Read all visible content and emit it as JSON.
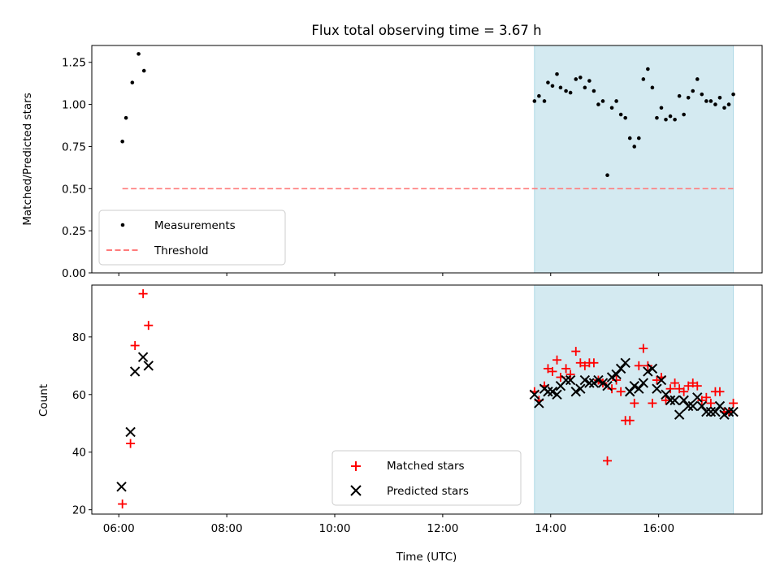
{
  "chart_data": [
    {
      "type": "scatter",
      "title": "Flux total observing time = 3.67 h",
      "xlabel": "",
      "ylabel": "Matched/Predicted stars",
      "ylim": [
        0,
        1.35
      ],
      "yticks": [
        "0.00",
        "0.25",
        "0.50",
        "0.75",
        "1.00",
        "1.25"
      ],
      "ytick_values": [
        0,
        0.25,
        0.5,
        0.75,
        1.0,
        1.25
      ],
      "shaded_span": {
        "from": "13:42",
        "to": "17:23",
        "color": "#d4eaf1"
      },
      "legend_location": "lower-left",
      "series": [
        {
          "name": "Measurements",
          "color": "#000000",
          "marker": "dot",
          "x": [
            "06:04",
            "06:08",
            "06:15",
            "06:22",
            "06:28",
            "13:42",
            "13:47",
            "13:53",
            "13:57",
            "14:02",
            "14:07",
            "14:11",
            "14:17",
            "14:22",
            "14:28",
            "14:33",
            "14:38",
            "14:43",
            "14:48",
            "14:53",
            "14:58",
            "15:03",
            "15:08",
            "15:13",
            "15:18",
            "15:23",
            "15:28",
            "15:33",
            "15:38",
            "15:43",
            "15:48",
            "15:53",
            "15:58",
            "16:03",
            "16:08",
            "16:13",
            "16:18",
            "16:23",
            "16:28",
            "16:33",
            "16:38",
            "16:43",
            "16:48",
            "16:53",
            "16:58",
            "17:03",
            "17:08",
            "17:13",
            "17:18",
            "17:23"
          ],
          "y": [
            0.78,
            0.92,
            1.13,
            1.3,
            1.2,
            1.02,
            1.05,
            1.02,
            1.13,
            1.11,
            1.18,
            1.1,
            1.08,
            1.07,
            1.15,
            1.16,
            1.1,
            1.14,
            1.08,
            1.0,
            1.02,
            0.58,
            0.98,
            1.02,
            0.94,
            0.92,
            0.8,
            0.75,
            0.8,
            1.15,
            1.21,
            1.1,
            0.92,
            0.98,
            0.91,
            0.93,
            0.91,
            1.05,
            0.94,
            1.04,
            1.08,
            1.15,
            1.06,
            1.02,
            1.02,
            1.0,
            1.04,
            0.98,
            1.0,
            1.06
          ]
        },
        {
          "name": "Threshold",
          "color": "#ff7b7b",
          "style": "dashed",
          "x": [
            "06:04",
            "17:23"
          ],
          "y": [
            0.5,
            0.5
          ]
        }
      ]
    },
    {
      "type": "scatter",
      "title": "",
      "xlabel": "Time (UTC)",
      "ylabel": "Count",
      "ylim": [
        18.5,
        98
      ],
      "yticks": [
        "20",
        "40",
        "60",
        "80"
      ],
      "ytick_values": [
        20,
        40,
        60,
        80
      ],
      "xticks": [
        "06:00",
        "08:00",
        "10:00",
        "12:00",
        "14:00",
        "16:00"
      ],
      "xlim": [
        "05:30",
        "17:55"
      ],
      "shaded_span": {
        "from": "13:42",
        "to": "17:23",
        "color": "#d4eaf1"
      },
      "legend_location": "lower-center",
      "series": [
        {
          "name": "Matched stars",
          "color": "#ff0000",
          "marker": "plus",
          "x": [
            "06:04",
            "06:13",
            "06:18",
            "06:27",
            "06:33",
            "13:42",
            "13:47",
            "13:53",
            "13:57",
            "14:02",
            "14:07",
            "14:11",
            "14:17",
            "14:22",
            "14:28",
            "14:33",
            "14:38",
            "14:43",
            "14:48",
            "14:53",
            "14:58",
            "15:03",
            "15:08",
            "15:13",
            "15:18",
            "15:23",
            "15:28",
            "15:33",
            "15:38",
            "15:43",
            "15:48",
            "15:53",
            "15:58",
            "16:03",
            "16:08",
            "16:13",
            "16:18",
            "16:23",
            "16:28",
            "16:33",
            "16:38",
            "16:43",
            "16:48",
            "16:53",
            "16:58",
            "17:03",
            "17:08",
            "17:13",
            "17:18",
            "17:23"
          ],
          "y": [
            22,
            43,
            77,
            95,
            84,
            61,
            58,
            63,
            69,
            68,
            72,
            66,
            69,
            67,
            75,
            71,
            70,
            71,
            71,
            65,
            64,
            37,
            62,
            65,
            61,
            51,
            51,
            57,
            70,
            76,
            70,
            57,
            65,
            66,
            58,
            62,
            64,
            62,
            61,
            63,
            64,
            63,
            58,
            59,
            57,
            61,
            61,
            54,
            54,
            57
          ]
        },
        {
          "name": "Predicted stars",
          "color": "#000000",
          "marker": "x",
          "x": [
            "06:03",
            "06:13",
            "06:18",
            "06:27",
            "06:33",
            "13:42",
            "13:47",
            "13:53",
            "13:57",
            "14:02",
            "14:07",
            "14:11",
            "14:17",
            "14:22",
            "14:28",
            "14:33",
            "14:38",
            "14:43",
            "14:48",
            "14:53",
            "14:58",
            "15:03",
            "15:08",
            "15:13",
            "15:18",
            "15:23",
            "15:28",
            "15:33",
            "15:38",
            "15:43",
            "15:48",
            "15:53",
            "15:58",
            "16:03",
            "16:08",
            "16:13",
            "16:18",
            "16:23",
            "16:28",
            "16:33",
            "16:38",
            "16:43",
            "16:48",
            "16:53",
            "16:58",
            "17:03",
            "17:08",
            "17:13",
            "17:18",
            "17:23"
          ],
          "y": [
            28,
            47,
            68,
            73,
            70,
            60,
            57,
            62,
            61,
            61,
            60,
            63,
            65,
            65,
            61,
            62,
            65,
            64,
            64,
            65,
            64,
            63,
            66,
            67,
            69,
            71,
            61,
            63,
            62,
            64,
            68,
            69,
            62,
            65,
            60,
            58,
            58,
            53,
            58,
            56,
            56,
            59,
            56,
            54,
            54,
            54,
            56,
            53,
            54,
            54
          ]
        }
      ]
    }
  ]
}
